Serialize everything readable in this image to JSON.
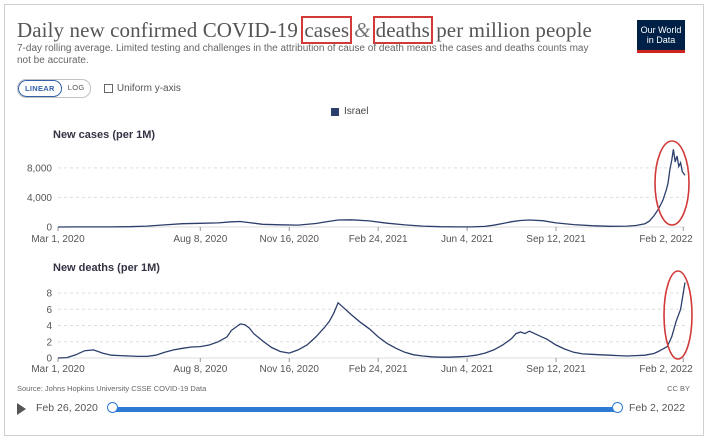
{
  "header": {
    "title_part1": "Daily new confirmed COVID-19",
    "title_cases": "cases",
    "title_amp": "&",
    "title_deaths": "deaths",
    "title_part2": "per million people",
    "subtitle": "7-day rolling average. Limited testing and challenges in the attribution of cause of death means the cases and deaths counts may not be accurate.",
    "logo_line1": "Our World",
    "logo_line2": "in Data"
  },
  "controls": {
    "linear_label": "LINEAR",
    "log_label": "LOG",
    "uniform_label": "Uniform y-axis"
  },
  "legend": {
    "label": "Israel",
    "color": "#2c3e6b"
  },
  "footer": {
    "source": "Source: Johns Hopkins University CSSE COVID-19 Data",
    "license": "CC BY"
  },
  "timeline": {
    "start_label": "Feb 26, 2020",
    "end_label": "Feb 2, 2022"
  },
  "colors": {
    "line": "#2c3e6b",
    "highlight": "#d23a3a",
    "grid": "#dddddd",
    "axis_text": "#555555"
  },
  "chart_data": [
    {
      "type": "line",
      "title": "New cases (per 1M)",
      "series": [
        {
          "name": "Israel"
        }
      ],
      "x_ticks": [
        "Mar 1, 2020",
        "Aug 8, 2020",
        "Nov 16, 2020",
        "Feb 24, 2021",
        "Jun 4, 2021",
        "Sep 12, 2021",
        "Feb 2, 2022"
      ],
      "y_ticks": [
        "0",
        "4,000",
        "8,000"
      ],
      "y_tick_values": [
        0,
        4000,
        8000
      ],
      "ylim": [
        0,
        11500
      ],
      "xlim_days": [
        0,
        705
      ],
      "x": [
        0,
        20,
        40,
        60,
        80,
        100,
        120,
        140,
        160,
        180,
        195,
        205,
        215,
        230,
        250,
        270,
        290,
        300,
        315,
        330,
        350,
        370,
        390,
        410,
        430,
        450,
        465,
        480,
        490,
        500,
        510,
        520,
        530,
        545,
        560,
        580,
        600,
        620,
        640,
        650,
        660,
        665,
        670,
        675,
        680,
        684,
        686,
        688,
        690,
        692,
        694,
        696,
        698,
        700,
        702,
        705
      ],
      "values": [
        0,
        20,
        15,
        10,
        40,
        120,
        280,
        450,
        500,
        560,
        700,
        740,
        600,
        360,
        300,
        260,
        480,
        680,
        950,
        980,
        820,
        520,
        280,
        120,
        40,
        20,
        15,
        80,
        250,
        480,
        720,
        880,
        950,
        850,
        560,
        320,
        180,
        100,
        120,
        200,
        450,
        800,
        1500,
        2400,
        3600,
        5000,
        6000,
        7800,
        9000,
        10500,
        8800,
        9600,
        8200,
        8700,
        7500,
        7000
      ]
    },
    {
      "type": "line",
      "title": "New deaths (per 1M)",
      "series": [
        {
          "name": "Israel"
        }
      ],
      "x_ticks": [
        "Mar 1, 2020",
        "Aug 8, 2020",
        "Nov 16, 2020",
        "Feb 24, 2021",
        "Jun 4, 2021",
        "Sep 12, 2021",
        "Feb 2, 2022"
      ],
      "y_ticks": [
        "0",
        "2",
        "4",
        "6",
        "8"
      ],
      "y_tick_values": [
        0,
        2,
        4,
        6,
        8
      ],
      "ylim": [
        0,
        9.6
      ],
      "xlim_days": [
        0,
        705
      ],
      "x": [
        0,
        10,
        20,
        30,
        40,
        50,
        60,
        70,
        80,
        90,
        100,
        110,
        120,
        130,
        140,
        150,
        160,
        170,
        180,
        190,
        195,
        200,
        205,
        210,
        215,
        220,
        230,
        240,
        250,
        260,
        270,
        280,
        290,
        300,
        305,
        310,
        315,
        320,
        330,
        340,
        350,
        360,
        370,
        380,
        390,
        400,
        410,
        420,
        430,
        440,
        450,
        460,
        470,
        480,
        490,
        500,
        510,
        515,
        520,
        525,
        530,
        540,
        550,
        560,
        570,
        580,
        590,
        600,
        610,
        620,
        630,
        640,
        650,
        660,
        670,
        675,
        680,
        685,
        690,
        695,
        700,
        705
      ],
      "values": [
        0,
        0.05,
        0.4,
        0.9,
        1.0,
        0.6,
        0.35,
        0.3,
        0.25,
        0.2,
        0.2,
        0.35,
        0.7,
        1.0,
        1.2,
        1.35,
        1.4,
        1.6,
        2.0,
        2.6,
        3.4,
        3.8,
        4.2,
        4.1,
        3.7,
        3.0,
        2.1,
        1.3,
        0.8,
        0.6,
        1.0,
        1.6,
        2.6,
        3.8,
        4.5,
        5.5,
        6.8,
        6.3,
        5.3,
        4.4,
        3.6,
        2.6,
        1.8,
        1.2,
        0.7,
        0.4,
        0.25,
        0.15,
        0.1,
        0.1,
        0.15,
        0.2,
        0.35,
        0.6,
        1.0,
        1.6,
        2.4,
        3.0,
        3.2,
        3.0,
        3.3,
        2.8,
        2.3,
        1.6,
        1.1,
        0.7,
        0.5,
        0.45,
        0.4,
        0.35,
        0.3,
        0.25,
        0.3,
        0.35,
        0.55,
        0.8,
        1.1,
        1.4,
        2.6,
        4.5,
        6.0,
        9.3
      ]
    }
  ]
}
